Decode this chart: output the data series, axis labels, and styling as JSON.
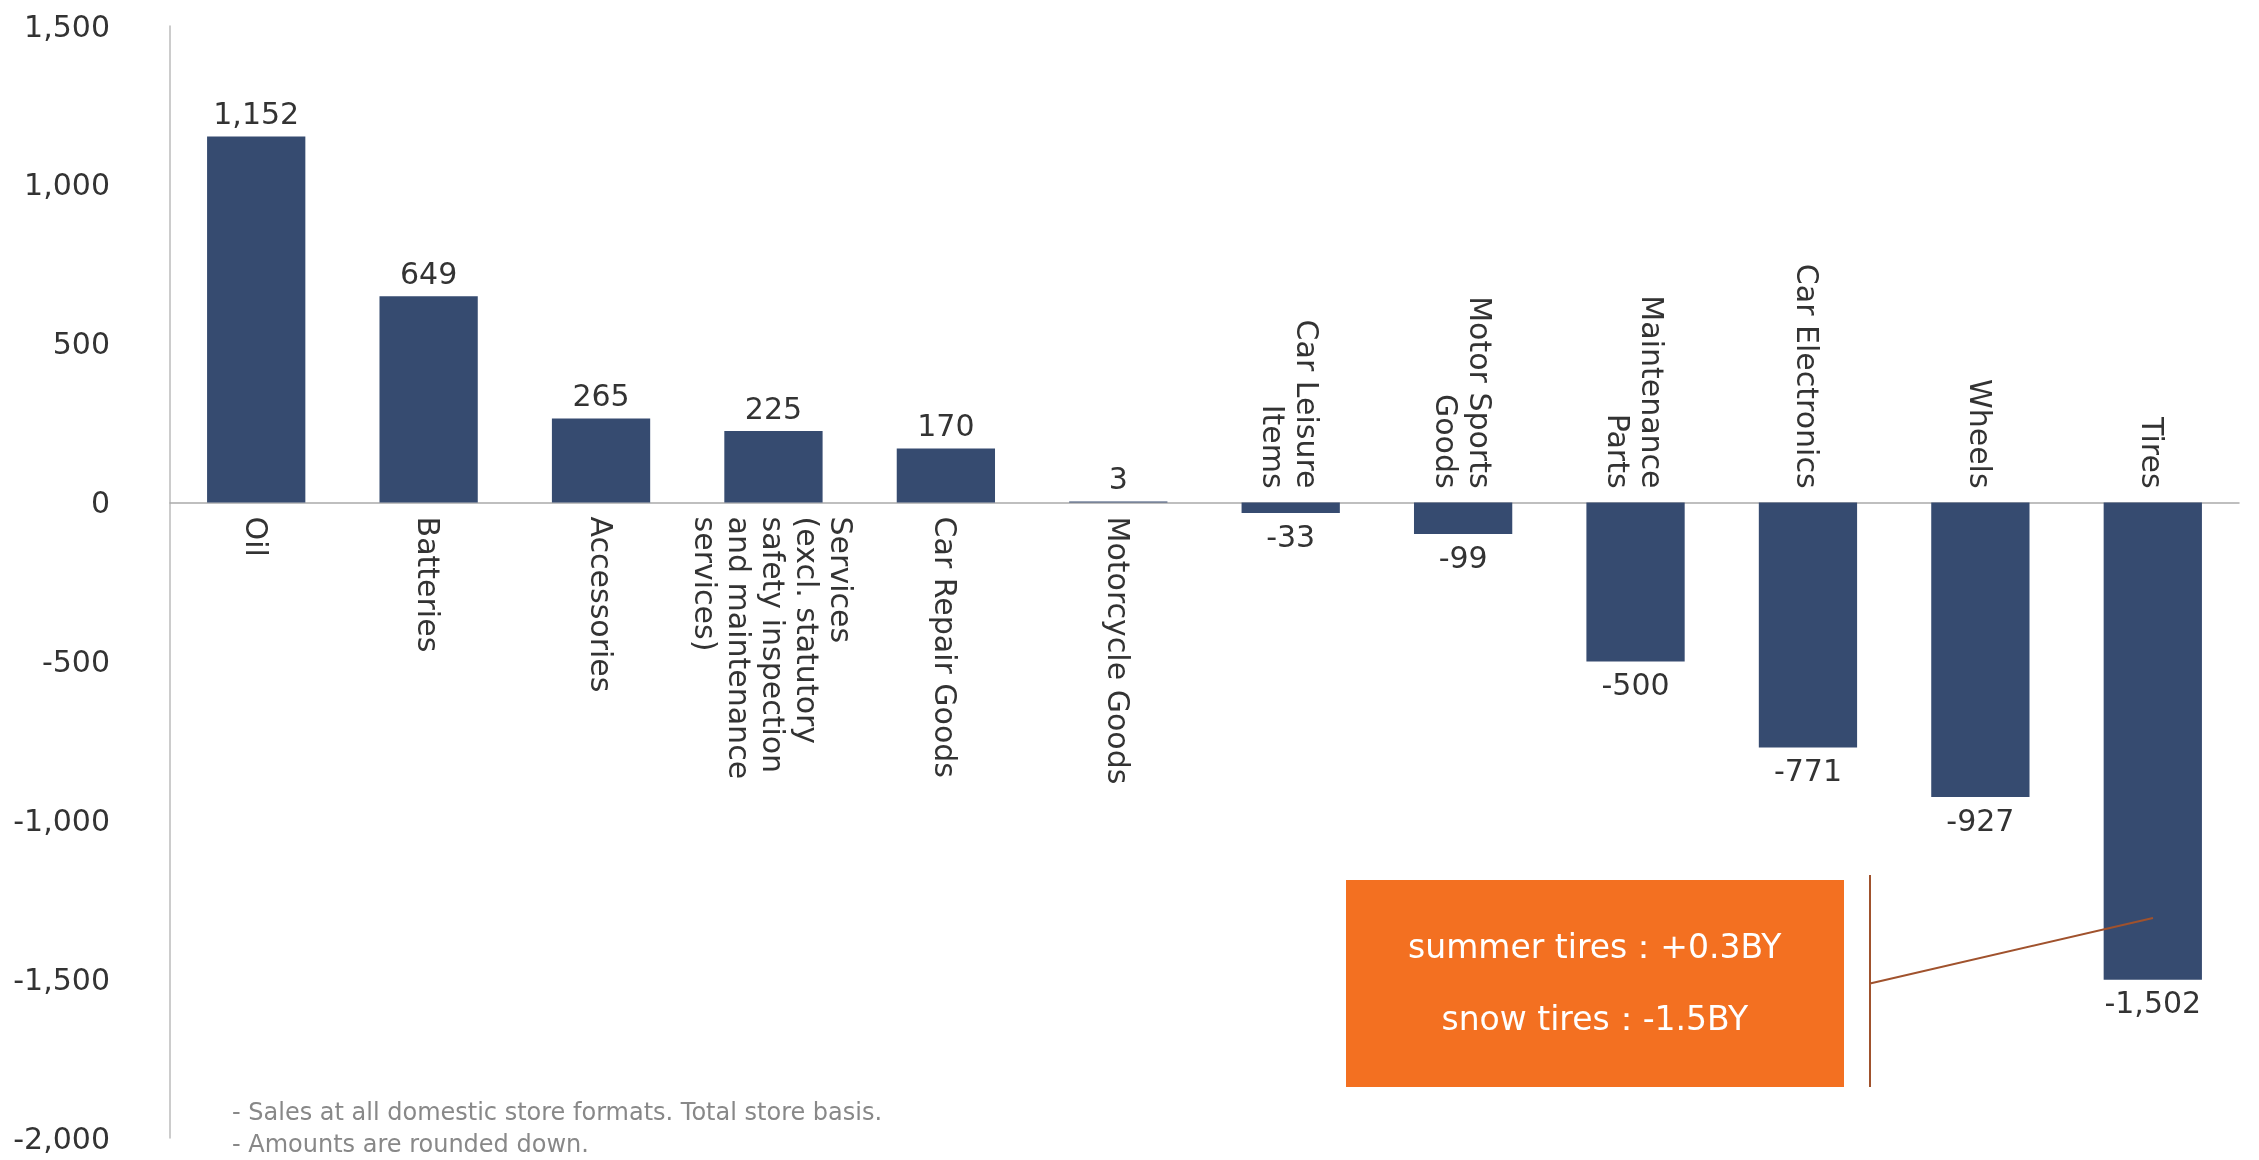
{
  "chart_data": {
    "type": "bar",
    "categories": [
      "Oil",
      "Batteries",
      "Accessories",
      "Services\n(excl. statutory\nsafety inspection\nand maintenance\nservices)",
      "Car Repair Goods",
      "Motorcycle Goods",
      "Car Leisure\nItems",
      "Motor Sports\nGoods",
      "Maintenance\nParts",
      "Car Electronics",
      "Wheels",
      "Tires"
    ],
    "values": [
      1152,
      649,
      265,
      225,
      170,
      3,
      -33,
      -99,
      -500,
      -771,
      -927,
      -1502
    ],
    "value_labels": [
      "1,152",
      "649",
      "265",
      "225",
      "170",
      "3",
      "-33",
      "-99",
      "-500",
      "-771",
      "-927",
      "-1,502"
    ],
    "color": "#364b70",
    "ylim": [
      -2000,
      1500
    ],
    "yticks": [
      {
        "value": -2000,
        "label": "-2,000"
      },
      {
        "value": -1500,
        "label": "-1,500"
      },
      {
        "value": -1000,
        "label": "-1,000"
      },
      -500,
      0,
      500,
      {
        "value": 1000,
        "label": "1,000"
      },
      {
        "value": 1500,
        "label": "1,500"
      }
    ],
    "annotations": [
      "summer tires：+0.3BY\nsnow tires：-1.5BY",
      "- Sales at all domestic store formats. Total store basis.",
      "- Amounts are rounded down."
    ]
  }
}
